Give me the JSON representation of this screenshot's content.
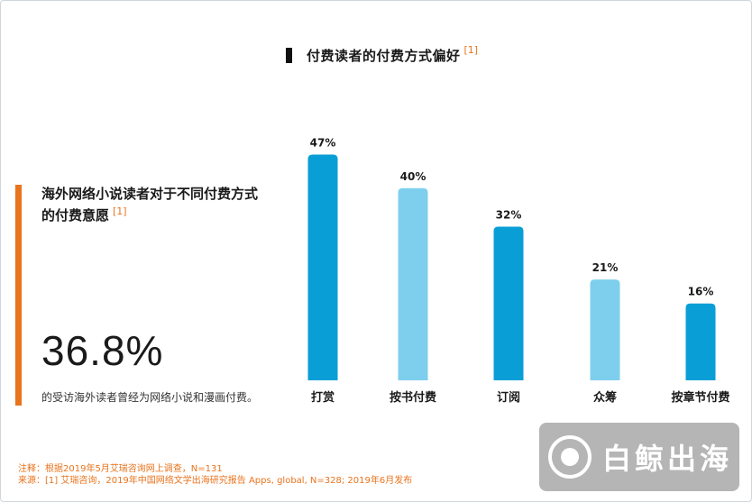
{
  "chart_title": "付费读者的付费方式偏好",
  "ref_marker": "[1]",
  "left_panel": {
    "heading": "海外网络小说读者对于不同付费方式的付费意愿",
    "ref_marker": "[1]",
    "stat_value": "36.8%",
    "stat_description": "的受访海外读者曾经为网络小说和漫画付费。"
  },
  "footnotes": {
    "note": "注释：根据2019年5月艾瑞咨询网上调查，N=131",
    "source": "来源：[1] 艾瑞咨询，2019年中国网络文学出海研究报告 Apps, global, N=328; 2019年6月发布"
  },
  "watermark": {
    "text": "白鲸出海"
  },
  "colors": {
    "dark_blue": "#0a9ed6",
    "light_blue": "#7ecfee",
    "accent_orange": "#e8741e"
  },
  "chart_data": {
    "type": "bar",
    "title": "付费读者的付费方式偏好",
    "categories": [
      "打赏",
      "按书付费",
      "订阅",
      "众筹",
      "按章节付费"
    ],
    "values": [
      47,
      40,
      32,
      21,
      16
    ],
    "value_labels": [
      "47%",
      "40%",
      "32%",
      "21%",
      "16%"
    ],
    "bar_colors": [
      "#0a9ed6",
      "#7ecfee",
      "#0a9ed6",
      "#7ecfee",
      "#0a9ed6"
    ],
    "unit": "%",
    "ylim": [
      0,
      50
    ],
    "grid": false
  }
}
